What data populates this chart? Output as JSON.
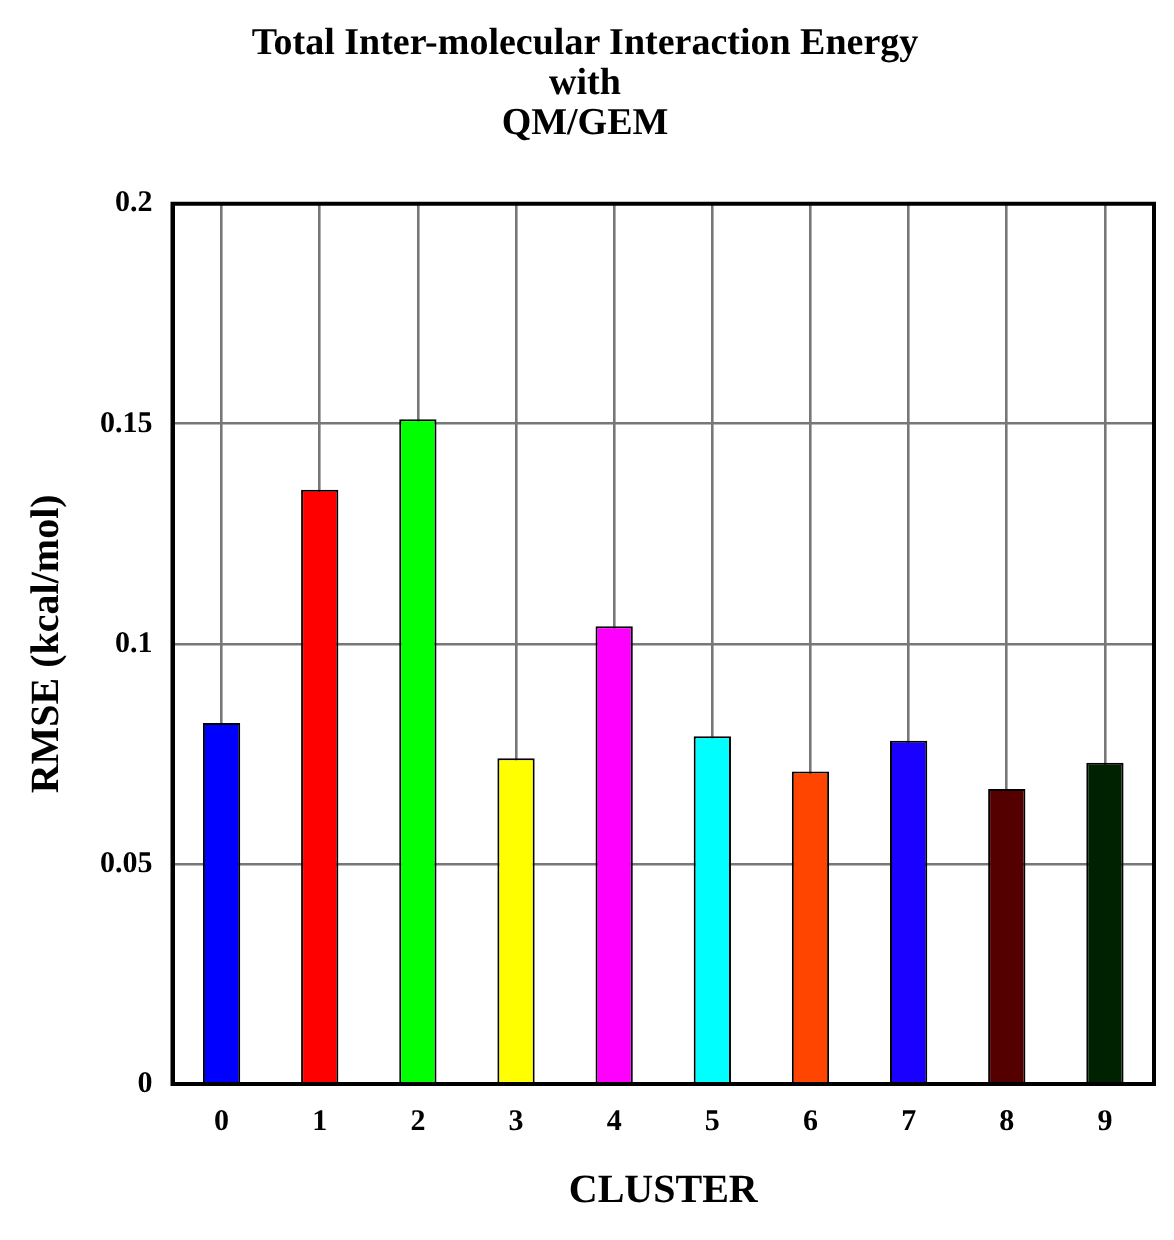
{
  "chart_data": {
    "type": "bar",
    "title": "Total Inter-molecular Interaction Energy\nwith\nQM/GEM",
    "xlabel": "CLUSTER",
    "ylabel": "RMSE (kcal/mol)",
    "categories": [
      "0",
      "1",
      "2",
      "3",
      "4",
      "5",
      "6",
      "7",
      "8",
      "9"
    ],
    "values": [
      0.082,
      0.135,
      0.151,
      0.074,
      0.104,
      0.079,
      0.071,
      0.078,
      0.067,
      0.073
    ],
    "colors": [
      "#0000ff",
      "#ff0000",
      "#00ff00",
      "#ffff00",
      "#ff00ff",
      "#00ffff",
      "#ff4500",
      "#1a00ff",
      "#550000",
      "#002200"
    ],
    "ylim": [
      0,
      0.2
    ],
    "yticks": [
      0,
      0.05,
      0.1,
      0.15,
      0.2
    ],
    "grid": true,
    "legend": false
  }
}
